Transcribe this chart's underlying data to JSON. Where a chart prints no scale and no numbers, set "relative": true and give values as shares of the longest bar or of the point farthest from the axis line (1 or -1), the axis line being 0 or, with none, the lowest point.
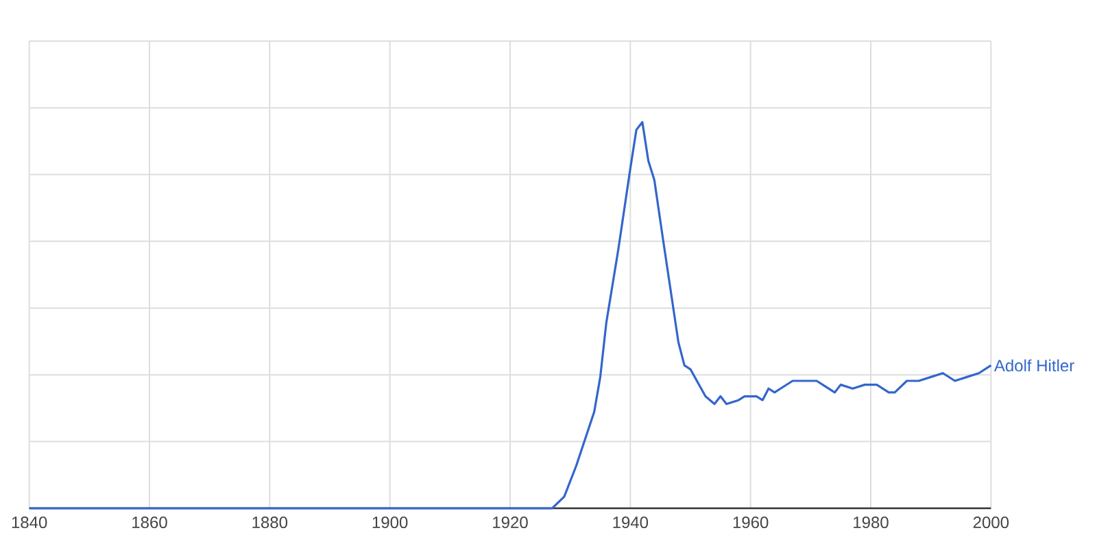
{
  "chart_data": {
    "type": "line",
    "relative": true,
    "grid": true,
    "legend": false,
    "marker": "none",
    "line_style": "solid",
    "xlim": [
      1840,
      2000
    ],
    "xticks": [
      1840,
      1860,
      1880,
      1900,
      1920,
      1940,
      1960,
      1980,
      2000
    ],
    "tick_labels": "x",
    "series": [
      {
        "name": "Adolf Hitler",
        "color": "#3366cc",
        "x": [
          1840,
          1925,
          1927,
          1929,
          1931,
          1934,
          1935,
          1936,
          1938,
          1940,
          1941,
          1942,
          1943,
          1944,
          1945.5,
          1948,
          1949,
          1950,
          1952.5,
          1954,
          1955,
          1956,
          1958,
          1959,
          1961,
          1962,
          1963,
          1964,
          1965,
          1967,
          1969,
          1971,
          1972,
          1974,
          1975,
          1977,
          1979,
          1981,
          1983,
          1984,
          1986,
          1988,
          1990,
          1992,
          1994,
          1996,
          1998,
          2000
        ],
        "values": [
          0,
          0,
          0,
          0.03,
          0.11,
          0.25,
          0.34,
          0.48,
          0.67,
          0.88,
          0.98,
          1.0,
          0.9,
          0.85,
          0.69,
          0.43,
          0.37,
          0.36,
          0.29,
          0.27,
          0.29,
          0.27,
          0.28,
          0.29,
          0.29,
          0.28,
          0.31,
          0.3,
          0.31,
          0.33,
          0.33,
          0.33,
          0.32,
          0.3,
          0.32,
          0.31,
          0.32,
          0.32,
          0.3,
          0.3,
          0.33,
          0.33,
          0.34,
          0.35,
          0.33,
          0.34,
          0.35,
          0.37
        ]
      }
    ]
  }
}
